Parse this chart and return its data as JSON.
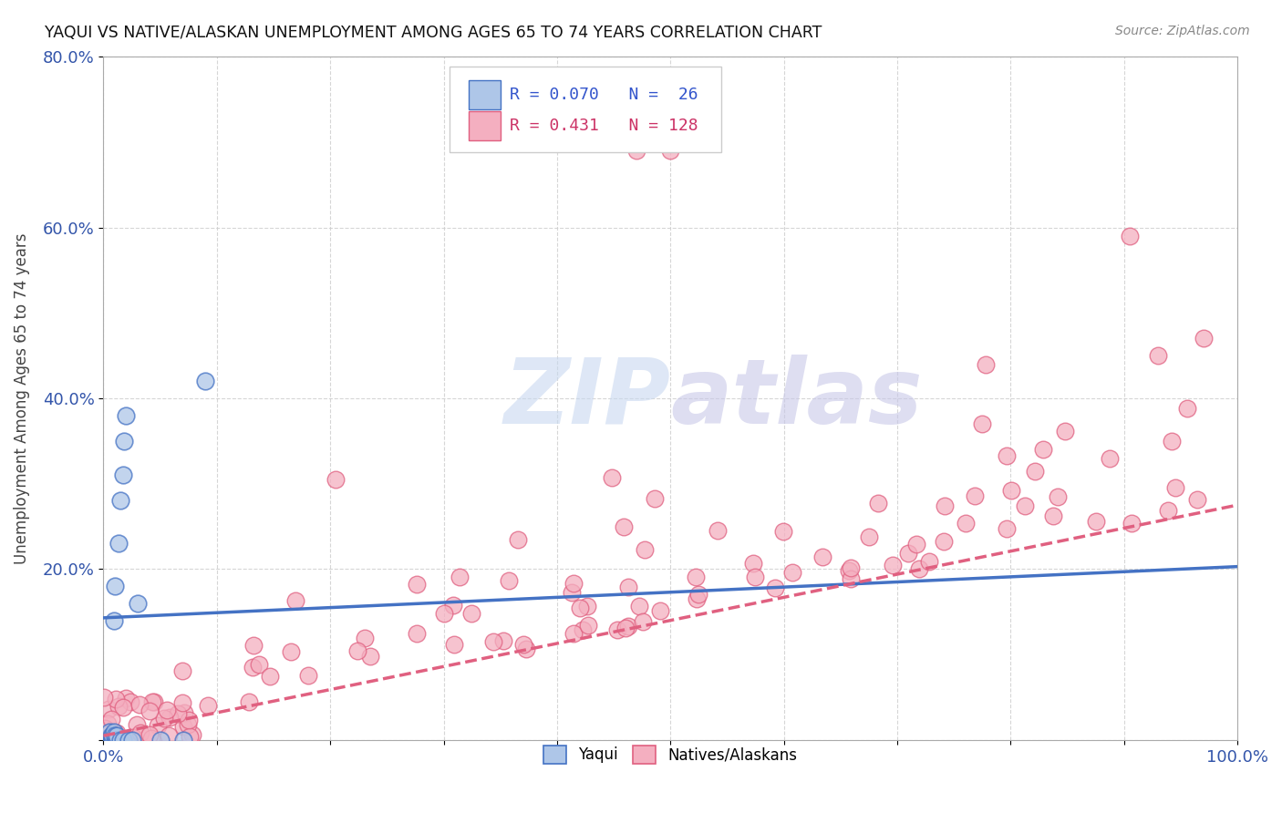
{
  "title": "YAQUI VS NATIVE/ALASKAN UNEMPLOYMENT AMONG AGES 65 TO 74 YEARS CORRELATION CHART",
  "source": "Source: ZipAtlas.com",
  "ylabel": "Unemployment Among Ages 65 to 74 years",
  "xlim": [
    0,
    1.0
  ],
  "ylim": [
    0,
    0.8
  ],
  "xticks": [
    0.0,
    0.1,
    0.2,
    0.3,
    0.4,
    0.5,
    0.6,
    0.7,
    0.8,
    0.9,
    1.0
  ],
  "xticklabels": [
    "0.0%",
    "",
    "",
    "",
    "",
    "",
    "",
    "",
    "",
    "",
    "100.0%"
  ],
  "yticks": [
    0.0,
    0.2,
    0.4,
    0.6,
    0.8
  ],
  "yticklabels": [
    "",
    "20.0%",
    "40.0%",
    "60.0%",
    "80.0%"
  ],
  "yaqui_R": 0.07,
  "yaqui_N": 26,
  "native_R": 0.431,
  "native_N": 128,
  "yaqui_fill_color": "#aec6e8",
  "yaqui_edge_color": "#4472C4",
  "native_fill_color": "#f4afc0",
  "native_edge_color": "#e06080",
  "yaqui_line_color": "#4472C4",
  "native_line_color": "#e06080",
  "legend_yaqui_label": "Yaqui",
  "legend_native_label": "Natives/Alaskans",
  "yaqui_line_intercept": 0.143,
  "yaqui_line_slope": 0.06,
  "native_line_intercept": 0.005,
  "native_line_slope": 0.27
}
